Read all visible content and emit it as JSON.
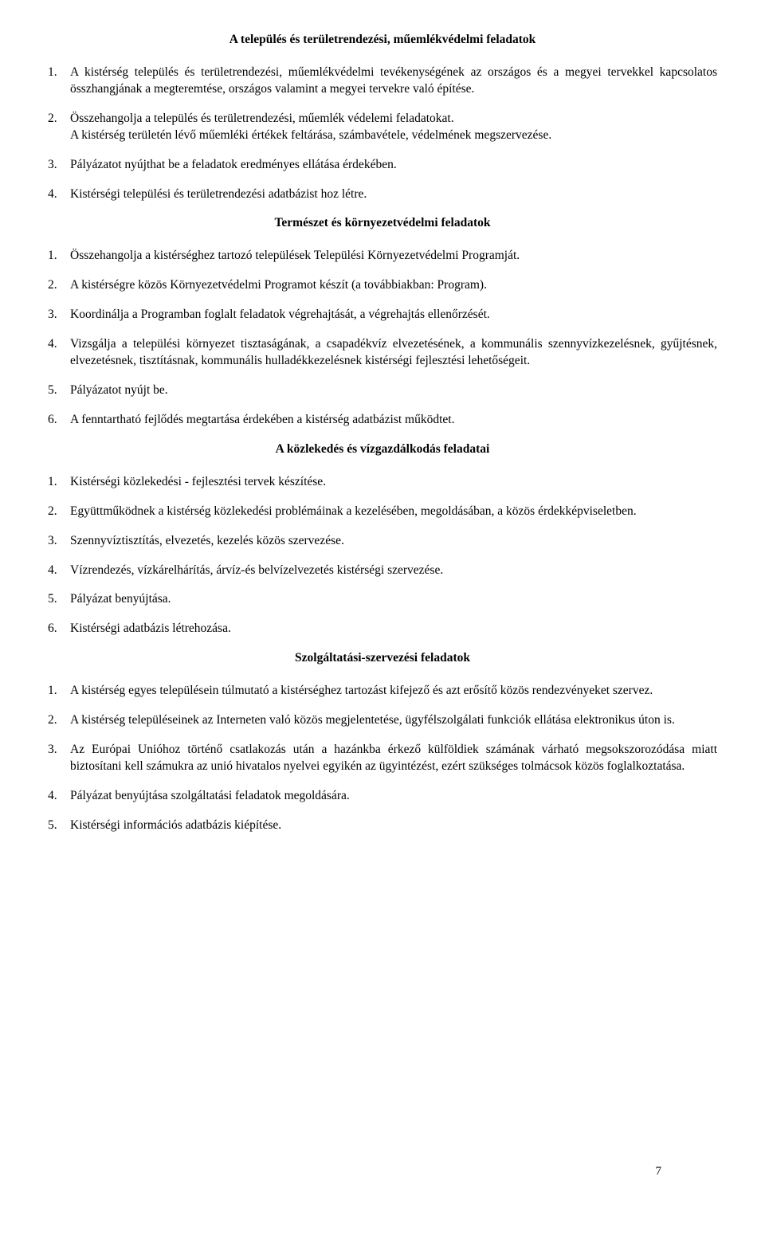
{
  "page_number": "7",
  "sections": [
    {
      "heading": "A település és területrendezési, műemlékvédelmi feladatok",
      "items": [
        {
          "num": "1.",
          "text": "A kistérség település és területrendezési, műemlékvédelmi tevékenységének az országos és a megyei tervekkel kapcsolatos összhangjának a megteremtése, országos valamint a megyei tervekre való építése.",
          "justify": true
        },
        {
          "num": "2.",
          "text": "Összehangolja a település és területrendezési, műemlék védelemi feladatokat.\nA kistérség területén lévő műemléki értékek feltárása, számbavétele, védelmének megszervezése.",
          "justify": false
        },
        {
          "num": "3.",
          "text": "Pályázatot nyújthat be a feladatok eredményes ellátása érdekében.",
          "justify": false
        },
        {
          "num": "4.",
          "text": "Kistérségi települési és területrendezési adatbázist hoz létre.",
          "justify": false
        }
      ]
    },
    {
      "heading": "Természet és környezetvédelmi feladatok",
      "items": [
        {
          "num": "1.",
          "text": "Összehangolja a kistérséghez tartozó települések Települési Környezetvédelmi Programját.",
          "justify": false
        },
        {
          "num": "2.",
          "text": "A kistérségre közös Környezetvédelmi Programot készít (a továbbiakban: Program).",
          "justify": false
        },
        {
          "num": "3.",
          "text": "Koordinálja a Programban foglalt feladatok végrehajtását, a végrehajtás ellenőrzését.",
          "justify": false
        },
        {
          "num": "4.",
          "text": "Vizsgálja a települési környezet tisztaságának, a csapadékvíz elvezetésének, a kommunális szennyvízkezelésnek, gyűjtésnek, elvezetésnek, tisztításnak, kommunális hulladékkezelésnek kistérségi fejlesztési lehetőségeit.",
          "justify": true
        },
        {
          "num": "5.",
          "text": "Pályázatot nyújt be.",
          "justify": false
        },
        {
          "num": "6.",
          "text": "A fenntartható fejlődés megtartása érdekében a kistérség adatbázist működtet.",
          "justify": false
        }
      ]
    },
    {
      "heading": "A közlekedés és vízgazdálkodás feladatai",
      "items": [
        {
          "num": "1.",
          "text": "Kistérségi közlekedési - fejlesztési tervek készítése.",
          "justify": false
        },
        {
          "num": "2.",
          "text": "Együttműködnek a kistérség közlekedési problémáinak a kezelésében, megoldásában, a közös érdekképviseletben.",
          "justify": true
        },
        {
          "num": "3.",
          "text": "Szennyvíztisztítás, elvezetés, kezelés közös szervezése.",
          "justify": false
        },
        {
          "num": "4.",
          "text": "Vízrendezés, vízkárelhárítás, árvíz-és belvízelvezetés kistérségi szervezése.",
          "justify": false
        },
        {
          "num": "5.",
          "text": "Pályázat benyújtása.",
          "justify": false
        },
        {
          "num": "6.",
          "text": "Kistérségi adatbázis létrehozása.",
          "justify": false
        }
      ]
    },
    {
      "heading": "Szolgáltatási-szervezési feladatok",
      "items": [
        {
          "num": "1.",
          "text": "A kistérség egyes településein túlmutató a kistérséghez tartozást kifejező és azt erősítő közös rendezvényeket szervez.",
          "justify": true
        },
        {
          "num": "2.",
          "text": "A kistérség településeinek az Interneten való közös megjelentetése, ügyfélszolgálati funkciók ellátása elektronikus úton is.",
          "justify": true
        },
        {
          "num": "3.",
          "text": "Az Európai Unióhoz történő csatlakozás után a hazánkba érkező külföldiek számának várható megsokszorozódása miatt biztosítani kell számukra az unió hivatalos nyelvei egyikén az ügyintézést, ezért szükséges tolmácsok közös foglalkoztatása.",
          "justify": true
        },
        {
          "num": "4.",
          "text": "Pályázat benyújtása szolgáltatási feladatok megoldására.",
          "justify": false
        },
        {
          "num": "5.",
          "text": "Kistérségi információs adatbázis kiépítése.",
          "justify": false
        }
      ]
    }
  ]
}
